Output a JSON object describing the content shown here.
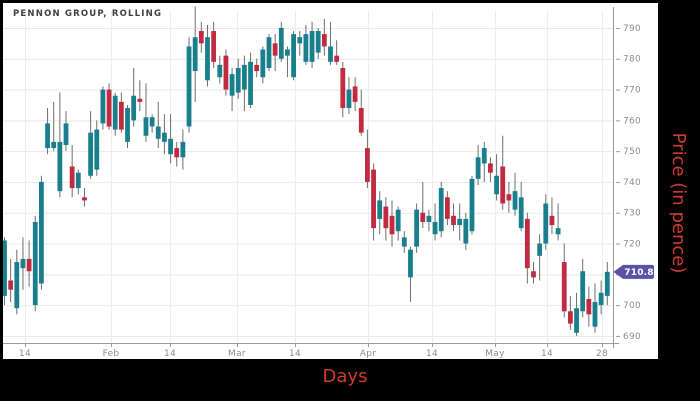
{
  "chart_data": {
    "type": "candlestick",
    "title": "PENNON GROUP, ROLLING",
    "xlabel": "Days",
    "ylabel": "Price (in pence)",
    "ylim": [
      687.7,
      798.1
    ],
    "grid": true,
    "legend_position": "none",
    "y_ticks": [
      690,
      700,
      710,
      720,
      730,
      740,
      750,
      760,
      770,
      780,
      790
    ],
    "x_ticks": [
      {
        "label": "14",
        "x": 22
      },
      {
        "label": "Feb",
        "x": 108
      },
      {
        "label": "14",
        "x": 167
      },
      {
        "label": "Mar",
        "x": 234
      },
      {
        "label": "14",
        "x": 292
      },
      {
        "label": "Apr",
        "x": 365
      },
      {
        "label": "14",
        "x": 429
      },
      {
        "label": "May",
        "x": 492
      },
      {
        "label": "14",
        "x": 544
      },
      {
        "label": "28",
        "x": 599
      }
    ],
    "last_price": 710.8,
    "candles_ohlc": [
      [
        703,
        722,
        700,
        721
      ],
      [
        708,
        715,
        701,
        705
      ],
      [
        699,
        718,
        697,
        714
      ],
      [
        712,
        722,
        705,
        715
      ],
      [
        715,
        721,
        706,
        711
      ],
      [
        700,
        729,
        698,
        727
      ],
      [
        707,
        742,
        705,
        740
      ],
      [
        751,
        764,
        749,
        759
      ],
      [
        751,
        766,
        750,
        753
      ],
      [
        737,
        769,
        735,
        753
      ],
      [
        752,
        763,
        750,
        759
      ],
      [
        745,
        752,
        735,
        738
      ],
      [
        738,
        744,
        736,
        743
      ],
      [
        735,
        738,
        732,
        734
      ],
      [
        742,
        763,
        741,
        756
      ],
      [
        744,
        760,
        742,
        757
      ],
      [
        759,
        771,
        757,
        770
      ],
      [
        770,
        772,
        757,
        758
      ],
      [
        757,
        769,
        755,
        768
      ],
      [
        766,
        769,
        756,
        757
      ],
      [
        753,
        765,
        751,
        764
      ],
      [
        760,
        777,
        758,
        768
      ],
      [
        767,
        773,
        763,
        766
      ],
      [
        755,
        772,
        753,
        761
      ],
      [
        758,
        762,
        756,
        761
      ],
      [
        754,
        766,
        751,
        758
      ],
      [
        753,
        762,
        749,
        756
      ],
      [
        749,
        762,
        746,
        754
      ],
      [
        751,
        753,
        745,
        748
      ],
      [
        748,
        757,
        744,
        753
      ],
      [
        758,
        787,
        756,
        784
      ],
      [
        776,
        797,
        766,
        787
      ],
      [
        789,
        792,
        782,
        785
      ],
      [
        773,
        791,
        771,
        787
      ],
      [
        789,
        792,
        777,
        779
      ],
      [
        774,
        781,
        772,
        778
      ],
      [
        781,
        783,
        768,
        770
      ],
      [
        768,
        777,
        763,
        775
      ],
      [
        769,
        780,
        767,
        777
      ],
      [
        770,
        781,
        763,
        778
      ],
      [
        765,
        782,
        764,
        779
      ],
      [
        778,
        780,
        774,
        776
      ],
      [
        774,
        784,
        772,
        783
      ],
      [
        777,
        788,
        776,
        787
      ],
      [
        785,
        788,
        776,
        781
      ],
      [
        780,
        792,
        779,
        790
      ],
      [
        781,
        784,
        774,
        783
      ],
      [
        774,
        789,
        773,
        788
      ],
      [
        785,
        789,
        781,
        787
      ],
      [
        779,
        791,
        778,
        788
      ],
      [
        779,
        792,
        777,
        789
      ],
      [
        782,
        790,
        780,
        789
      ],
      [
        788,
        793,
        781,
        784
      ],
      [
        779,
        792,
        778,
        784
      ],
      [
        781,
        786,
        778,
        779
      ],
      [
        777,
        779,
        761,
        764
      ],
      [
        764,
        774,
        762,
        770
      ],
      [
        771,
        774,
        763,
        766
      ],
      [
        764,
        770,
        755,
        756
      ],
      [
        751,
        757,
        738,
        740
      ],
      [
        744,
        746,
        721,
        725
      ],
      [
        728,
        737,
        723,
        734
      ],
      [
        732,
        735,
        721,
        725
      ],
      [
        729,
        734,
        719,
        723
      ],
      [
        724,
        732,
        721,
        731
      ],
      [
        719,
        724,
        717,
        722
      ],
      [
        709,
        719,
        701,
        718
      ],
      [
        719,
        733,
        717,
        731
      ],
      [
        730,
        740,
        725,
        727
      ],
      [
        727,
        731,
        724,
        729
      ],
      [
        723,
        733,
        721,
        727
      ],
      [
        724,
        740,
        722,
        738
      ],
      [
        735,
        737,
        726,
        728
      ],
      [
        729,
        733,
        724,
        726
      ],
      [
        726,
        733,
        721,
        728
      ],
      [
        720,
        730,
        718,
        728
      ],
      [
        724,
        742,
        723,
        741
      ],
      [
        741,
        752,
        739,
        748
      ],
      [
        746,
        753,
        740,
        751
      ],
      [
        746,
        748,
        740,
        743
      ],
      [
        736,
        749,
        734,
        742
      ],
      [
        745,
        755,
        731,
        733
      ],
      [
        736,
        740,
        730,
        734
      ],
      [
        731,
        743,
        729,
        737
      ],
      [
        725,
        740,
        724,
        735
      ],
      [
        728,
        730,
        707,
        712
      ],
      [
        711,
        714,
        707,
        709
      ],
      [
        716,
        723,
        708,
        720
      ],
      [
        720,
        736,
        718,
        733
      ],
      [
        729,
        735,
        723,
        726
      ],
      [
        723,
        733,
        721,
        725
      ],
      [
        714,
        720,
        696,
        698
      ],
      [
        698,
        703,
        692,
        694
      ],
      [
        691,
        704,
        690,
        699
      ],
      [
        698,
        715,
        696,
        711
      ],
      [
        702,
        706,
        693,
        697
      ],
      [
        693,
        707,
        691,
        701
      ],
      [
        700,
        708,
        697,
        704
      ],
      [
        703,
        714,
        700,
        710.8
      ]
    ]
  },
  "colors": {
    "up": "#1a7f8d",
    "down": "#c22a42",
    "wick": "#6e6e6e",
    "grid_h": "#e9e9e9",
    "grid_v": "#ededed",
    "axis": "#9b9b9b",
    "tick_text": "#8c8c8c",
    "flag_bg": "#5a52a5",
    "flag_text": "#ffffff",
    "label_red": "#cf3a31",
    "frame_bg": "#000000",
    "plot_bg": "#ffffff",
    "title_text": "#3f3f3f"
  }
}
